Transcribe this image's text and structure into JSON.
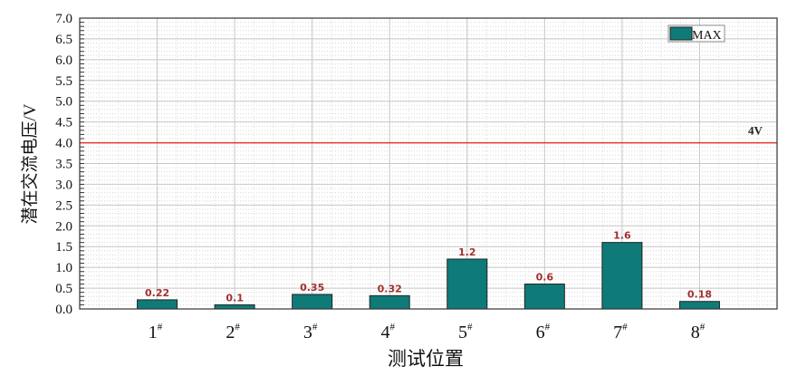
{
  "chart_data": {
    "type": "bar",
    "categories": [
      "1#",
      "2#",
      "3#",
      "4#",
      "5#",
      "6#",
      "7#",
      "8#"
    ],
    "series": [
      {
        "name": "MAX",
        "values": [
          0.22,
          0.1,
          0.35,
          0.32,
          1.2,
          0.6,
          1.6,
          0.18
        ],
        "color": "#0f7b78"
      }
    ],
    "data_labels": [
      "0.22",
      "0.1",
      "0.35",
      "0.32",
      "1.2",
      "0.6",
      "1.6",
      "0.18"
    ],
    "xlabel": "测试位置",
    "ylabel": "潜在交流电压/V",
    "ylim": [
      0,
      7.0
    ],
    "yticks": [
      "0.0",
      "0.5",
      "1.0",
      "1.5",
      "2.0",
      "2.5",
      "3.0",
      "3.5",
      "4.0",
      "4.5",
      "5.0",
      "5.5",
      "6.0",
      "6.5",
      "7.0"
    ],
    "reference_line": {
      "value": 4.0,
      "label": "4V",
      "color": "#e03a2a"
    },
    "grid": true,
    "legend_position": "top-right"
  }
}
